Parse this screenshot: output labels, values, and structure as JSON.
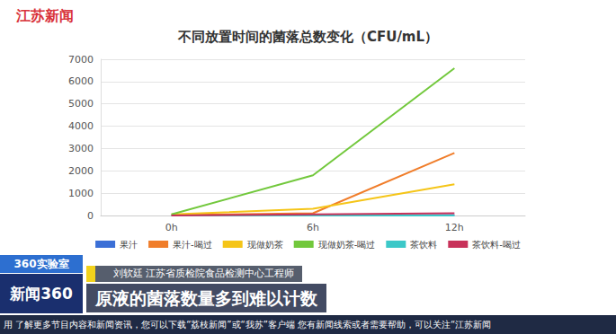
{
  "chart_data": {
    "type": "line",
    "title": "不同放置时间的菌落总数变化（CFU/mL）",
    "categories": [
      "0h",
      "6h",
      "12h"
    ],
    "series": [
      {
        "name": "果汁",
        "color": "#3b6fd6",
        "values": [
          0,
          0,
          20
        ]
      },
      {
        "name": "果汁-喝过",
        "color": "#f07d2a",
        "values": [
          20,
          100,
          2800
        ]
      },
      {
        "name": "现做奶茶",
        "color": "#f5c518",
        "values": [
          50,
          300,
          1400
        ]
      },
      {
        "name": "现做奶茶-喝过",
        "color": "#72c83c",
        "values": [
          50,
          1800,
          6600
        ]
      },
      {
        "name": "茶饮料",
        "color": "#3cc8c8",
        "values": [
          0,
          0,
          0
        ]
      },
      {
        "name": "茶饮料-喝过",
        "color": "#c8325a",
        "values": [
          0,
          50,
          100
        ]
      }
    ],
    "ylim": [
      0,
      7000
    ],
    "yticks": [
      0,
      1000,
      2000,
      3000,
      4000,
      5000,
      6000,
      7000
    ],
    "grid": true,
    "legend": "bottom",
    "marker": "none",
    "annotations": [
      "江苏新闻",
      "360实验室",
      "新闻360",
      "刘软廷 江苏省质检院食品检测中心工程师",
      "原液的菌落数量多到难以计数",
      "用 了解更多节目内容和新闻资讯，您可以下载“荔枝新闻”或“我苏”客户端 您有新闻线索或者需要帮助，可以关注“江苏新闻"
    ]
  }
}
